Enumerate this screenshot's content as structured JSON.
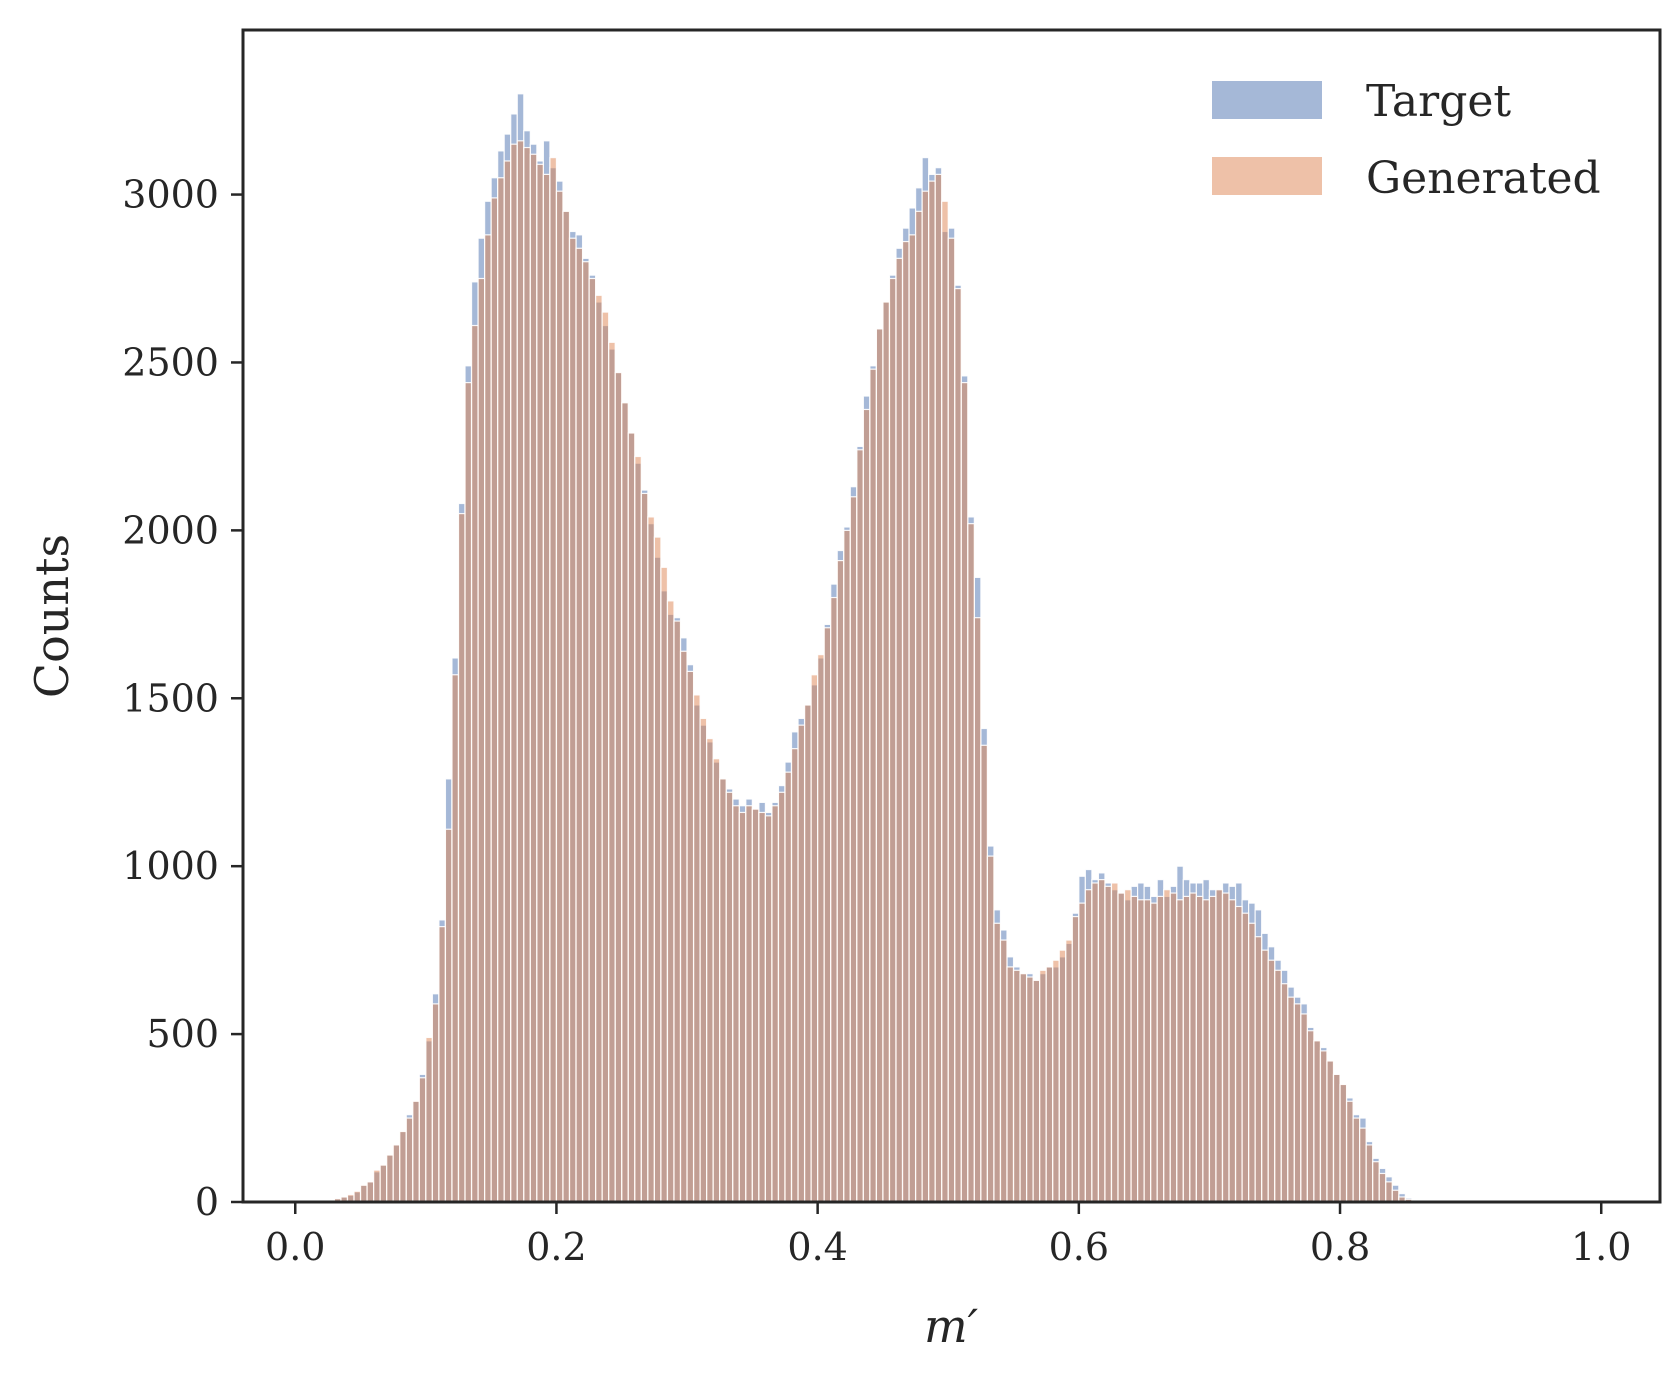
{
  "chart_data": {
    "type": "bar",
    "xlabel": "m′",
    "ylabel": "Counts",
    "xlim": [
      -0.04,
      1.045
    ],
    "ylim": [
      0,
      3490
    ],
    "x_ticks": [
      "0.0",
      "0.2",
      "0.4",
      "0.6",
      "0.8",
      "1.0"
    ],
    "y_ticks": [
      "0",
      "500",
      "1000",
      "1500",
      "2000",
      "2500",
      "3000"
    ],
    "grid": false,
    "legend_position": "top-right",
    "bins": {
      "start": 0.0,
      "width": 0.005
    },
    "colors": {
      "target": "#4c72b0",
      "generated": "#dd8452",
      "axis": "#262626"
    },
    "series": [
      {
        "name": "Target",
        "values": [
          0,
          0,
          0,
          0,
          3,
          5,
          10,
          15,
          20,
          30,
          50,
          60,
          90,
          110,
          140,
          170,
          210,
          260,
          300,
          380,
          480,
          620,
          840,
          1260,
          1620,
          2080,
          2490,
          2740,
          2870,
          2980,
          3050,
          3130,
          3180,
          3240,
          3300,
          3190,
          3150,
          3100,
          3160,
          3080,
          3040,
          2950,
          2890,
          2880,
          2810,
          2760,
          2680,
          2610,
          2540,
          2470,
          2380,
          2290,
          2200,
          2120,
          2020,
          1920,
          1820,
          1750,
          1740,
          1680,
          1600,
          1480,
          1420,
          1370,
          1310,
          1260,
          1230,
          1200,
          1180,
          1200,
          1170,
          1190,
          1160,
          1190,
          1240,
          1310,
          1400,
          1440,
          1480,
          1540,
          1620,
          1720,
          1840,
          1940,
          2010,
          2130,
          2250,
          2400,
          2490,
          2600,
          2680,
          2760,
          2840,
          2900,
          2960,
          3020,
          3110,
          3060,
          3080,
          2890,
          2900,
          2730,
          2460,
          2040,
          1860,
          1410,
          1060,
          870,
          810,
          730,
          700,
          680,
          680,
          660,
          680,
          700,
          700,
          730,
          770,
          860,
          970,
          990,
          960,
          980,
          950,
          930,
          920,
          900,
          940,
          950,
          940,
          910,
          960,
          910,
          940,
          1000,
          960,
          950,
          950,
          960,
          930,
          930,
          950,
          940,
          950,
          900,
          890,
          870,
          800,
          760,
          720,
          690,
          640,
          610,
          590,
          520,
          480,
          460,
          420,
          380,
          350,
          310,
          260,
          250,
          180,
          130,
          100,
          75,
          50,
          25,
          12,
          5,
          2,
          0,
          0,
          0,
          0,
          0,
          0,
          0,
          0,
          0,
          0,
          0,
          0,
          0,
          0,
          0,
          0,
          0
        ]
      },
      {
        "name": "Generated",
        "values": [
          0,
          0,
          0,
          0,
          2,
          5,
          10,
          15,
          22,
          32,
          50,
          60,
          95,
          110,
          140,
          170,
          210,
          250,
          300,
          370,
          490,
          590,
          820,
          1110,
          1570,
          2050,
          2440,
          2610,
          2750,
          2880,
          2990,
          3050,
          3100,
          3150,
          3160,
          3140,
          3120,
          3090,
          3060,
          3110,
          3010,
          2950,
          2870,
          2840,
          2800,
          2750,
          2700,
          2650,
          2560,
          2470,
          2380,
          2290,
          2220,
          2110,
          2040,
          1980,
          1890,
          1790,
          1730,
          1640,
          1580,
          1510,
          1440,
          1380,
          1320,
          1260,
          1220,
          1180,
          1160,
          1180,
          1170,
          1160,
          1150,
          1180,
          1220,
          1280,
          1350,
          1420,
          1480,
          1570,
          1630,
          1710,
          1800,
          1910,
          2000,
          2100,
          2240,
          2360,
          2480,
          2600,
          2680,
          2750,
          2810,
          2860,
          2880,
          2950,
          3010,
          3040,
          3060,
          2980,
          2870,
          2720,
          2440,
          2020,
          1740,
          1360,
          1030,
          830,
          780,
          700,
          690,
          680,
          670,
          660,
          690,
          700,
          720,
          750,
          780,
          850,
          890,
          930,
          950,
          960,
          940,
          950,
          920,
          930,
          910,
          900,
          900,
          890,
          910,
          930,
          920,
          900,
          910,
          920,
          910,
          900,
          910,
          930,
          920,
          900,
          880,
          860,
          830,
          790,
          750,
          720,
          690,
          650,
          610,
          590,
          560,
          510,
          480,
          450,
          420,
          380,
          350,
          300,
          250,
          220,
          170,
          120,
          85,
          60,
          35,
          15,
          8,
          3,
          0,
          0,
          0,
          0,
          0,
          0,
          0,
          0,
          0,
          0,
          0,
          0,
          0,
          0,
          0,
          0,
          0
        ]
      }
    ]
  }
}
